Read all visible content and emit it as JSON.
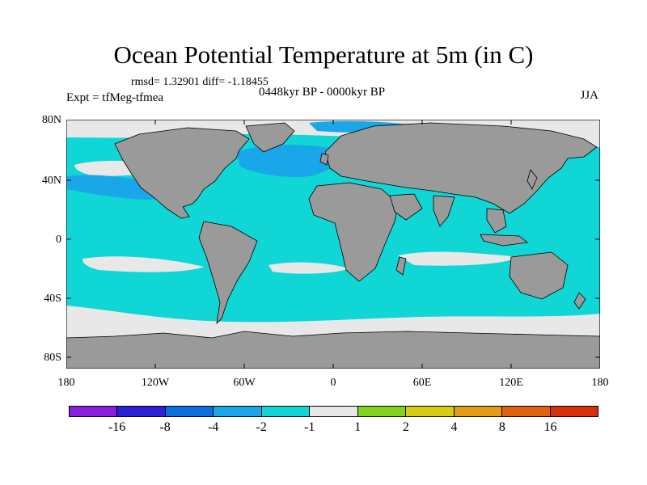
{
  "title": "Ocean Potential Temperature at 5m (in C)",
  "stats": "rmsd= 1.32901 diff= -1.18455",
  "period": "0448kyr BP - 0000kyr BP",
  "experiment": "Expt = tfMeg-tfmea",
  "season": "JJA",
  "lat_labels": [
    "80N",
    "40N",
    "0",
    "40S",
    "80S"
  ],
  "lon_labels": [
    "180",
    "120W",
    "60W",
    "0",
    "60E",
    "120E",
    "180"
  ],
  "colorbar": {
    "labels": [
      "-16",
      "-8",
      "-4",
      "-2",
      "-1",
      "1",
      "2",
      "4",
      "8",
      "16"
    ],
    "colors": [
      "#8a1ee0",
      "#2b1fd8",
      "#0d6ee0",
      "#1aa7ea",
      "#10d6d6",
      "#e8e8e8",
      "#7fd31c",
      "#d6cc12",
      "#e59c12",
      "#e0620f",
      "#d8300c"
    ]
  },
  "palette": {
    "land": "#9a9a9a",
    "ocean_cool": "#10d6d6",
    "ocean_neutral": "#e8e8e8",
    "ocean_cooler": "#1aa7ea",
    "ocean_coldest": "#0d6ee0"
  }
}
